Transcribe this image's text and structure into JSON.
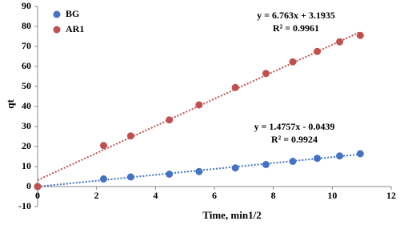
{
  "chart_data": {
    "type": "scatter",
    "x_label": "Time, min1/2",
    "y_label": "qt",
    "xlim": [
      0,
      12
    ],
    "xticks": [
      0,
      2,
      4,
      6,
      8,
      10,
      12
    ],
    "ylim": [
      -10,
      90
    ],
    "yticks": [
      -10,
      0,
      10,
      20,
      30,
      40,
      50,
      60,
      70,
      80,
      90
    ],
    "legend": "top-left",
    "series": [
      {
        "name": "BG",
        "color": "#4472c4",
        "x": [
          0,
          2.24,
          3.16,
          4.47,
          5.48,
          6.71,
          7.75,
          8.66,
          9.49,
          10.25,
          10.95
        ],
        "values": [
          0,
          3.8,
          4.8,
          6.2,
          7.5,
          9.3,
          11,
          12.6,
          14.1,
          15.3,
          16.4
        ],
        "trendline": {
          "slope": 1.4757,
          "intercept": -0.0439,
          "equation": "y = 1.4757x - 0.0439",
          "r2": "R² = 0.9924"
        }
      },
      {
        "name": "AR1",
        "color": "#c0504d",
        "x": [
          0,
          2.24,
          3.16,
          4.47,
          5.48,
          6.71,
          7.75,
          8.66,
          9.49,
          10.25,
          10.95
        ],
        "values": [
          0,
          20.5,
          25.3,
          33.3,
          40.8,
          49.5,
          56.5,
          62.3,
          67.5,
          72.3,
          75.5
        ],
        "trendline": {
          "slope": 6.763,
          "intercept": 3.1935,
          "equation": "y = 6.763x + 3.1935",
          "r2": "R² = 0.9961"
        }
      }
    ]
  }
}
